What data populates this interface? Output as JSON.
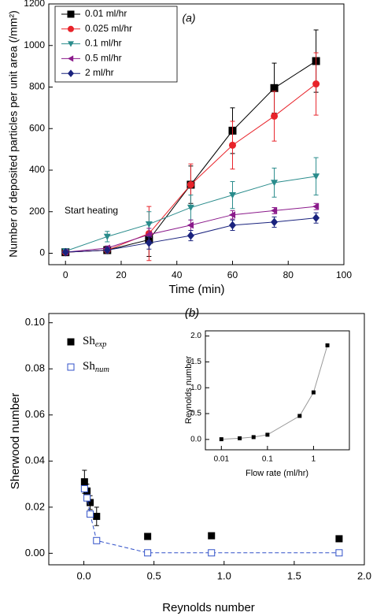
{
  "chart_data": [
    {
      "type": "line",
      "title": "(a)",
      "xlabel": "Time (min)",
      "ylabel": "Number of deposited particles per unit area (/mm²)",
      "annotation": "Start heating",
      "x": [
        0,
        15,
        30,
        45,
        60,
        75,
        90
      ],
      "xlim": [
        -6,
        100
      ],
      "xticks": [
        0,
        20,
        40,
        60,
        80,
        100
      ],
      "ylim": [
        -55,
        1200
      ],
      "yticks": [
        0,
        200,
        400,
        600,
        800,
        1000,
        1200
      ],
      "grid": false,
      "legend": "upper left",
      "series": [
        {
          "name": "0.01 ml/hr",
          "color": "#000000",
          "marker": "square",
          "linestyle": "solid",
          "values": [
            5,
            15,
            65,
            330,
            590,
            795,
            925
          ],
          "errors": [
            5,
            10,
            80,
            90,
            110,
            120,
            150
          ]
        },
        {
          "name": "0.025 ml/hr",
          "color": "#e8232a",
          "marker": "circle",
          "linestyle": "solid",
          "values": [
            5,
            15,
            95,
            330,
            520,
            660,
            815
          ],
          "errors": [
            5,
            10,
            130,
            100,
            115,
            120,
            150
          ]
        },
        {
          "name": "0.1 ml/hr",
          "color": "#2a8c8c",
          "marker": "triangle-down",
          "linestyle": "solid",
          "values": [
            10,
            80,
            140,
            220,
            280,
            340,
            370
          ],
          "errors": [
            5,
            25,
            60,
            60,
            65,
            70,
            90
          ]
        },
        {
          "name": "0.5 ml/hr",
          "color": "#8b1a8b",
          "marker": "triangle-left",
          "linestyle": "solid",
          "values": [
            5,
            25,
            90,
            135,
            185,
            205,
            225
          ],
          "errors": [
            5,
            10,
            30,
            25,
            20,
            15,
            15
          ]
        },
        {
          "name": "2 ml/hr",
          "color": "#1a237e",
          "marker": "diamond",
          "linestyle": "solid",
          "values": [
            5,
            15,
            50,
            85,
            135,
            150,
            170
          ],
          "errors": [
            5,
            10,
            30,
            25,
            25,
            25,
            25
          ]
        }
      ]
    },
    {
      "type": "scatter",
      "title": "(b)",
      "xlabel": "Reynolds number",
      "ylabel": "Sherwood number",
      "x": [
        0.0045,
        0.0227,
        0.045,
        0.091,
        0.455,
        0.91,
        1.82
      ],
      "xlim": [
        -0.25,
        2.0
      ],
      "xticks": [
        {
          "value": 0,
          "label": "0.0"
        },
        {
          "value": 0.5,
          "label": "0.5"
        },
        {
          "value": 1,
          "label": "1.0"
        },
        {
          "value": 1.5,
          "label": "1.5"
        },
        {
          "value": 2,
          "label": "2.0"
        }
      ],
      "ylim": [
        -0.005,
        0.104
      ],
      "yticks": [
        {
          "value": 0,
          "label": "0.00"
        },
        {
          "value": 0.02,
          "label": "0.02"
        },
        {
          "value": 0.04,
          "label": "0.04"
        },
        {
          "value": 0.06,
          "label": "0.06"
        },
        {
          "value": 0.08,
          "label": "0.08"
        },
        {
          "value": 0.1,
          "label": "0.10"
        }
      ],
      "grid": false,
      "legend": "upper left",
      "series": [
        {
          "name": "Sh",
          "subscript": "exp",
          "color": "#000000",
          "marker": "square",
          "linestyle": "none",
          "values": [
            0.031,
            0.027,
            0.022,
            0.016,
            0.0073,
            0.0076,
            0.0063
          ],
          "errors": [
            0.005,
            0.003,
            0.003,
            0.004,
            0.001,
            0.001,
            0.001
          ]
        },
        {
          "name": "Sh",
          "subscript": "num",
          "color": "#3050c8",
          "marker": "square-open",
          "linestyle": "dashed",
          "values": [
            0.028,
            0.024,
            0.017,
            0.0055,
            0.0002,
            0.0002,
            0.0002
          ]
        }
      ]
    },
    {
      "type": "line",
      "xlabel": "Flow rate (ml/hr)",
      "ylabel": "Reynolds number",
      "xscale": "log",
      "x": [
        0.01,
        0.025,
        0.05,
        0.1,
        0.5,
        1,
        2
      ],
      "xlim": [
        0.0045,
        6
      ],
      "xticks": [
        0.01,
        0.1,
        1
      ],
      "ylim": [
        -0.2,
        2.1
      ],
      "yticks": [
        {
          "value": 0,
          "label": "0.0"
        },
        {
          "value": 0.5,
          "label": "0.5"
        },
        {
          "value": 1,
          "label": "1.0"
        },
        {
          "value": 1.5,
          "label": "1.5"
        },
        {
          "value": 2,
          "label": "2.0"
        }
      ],
      "grid": false,
      "series": [
        {
          "color": "#000000",
          "line_color": "#999999",
          "marker": "square",
          "linestyle": "solid",
          "values": [
            0.0045,
            0.0227,
            0.045,
            0.091,
            0.455,
            0.91,
            1.82
          ]
        }
      ]
    }
  ]
}
